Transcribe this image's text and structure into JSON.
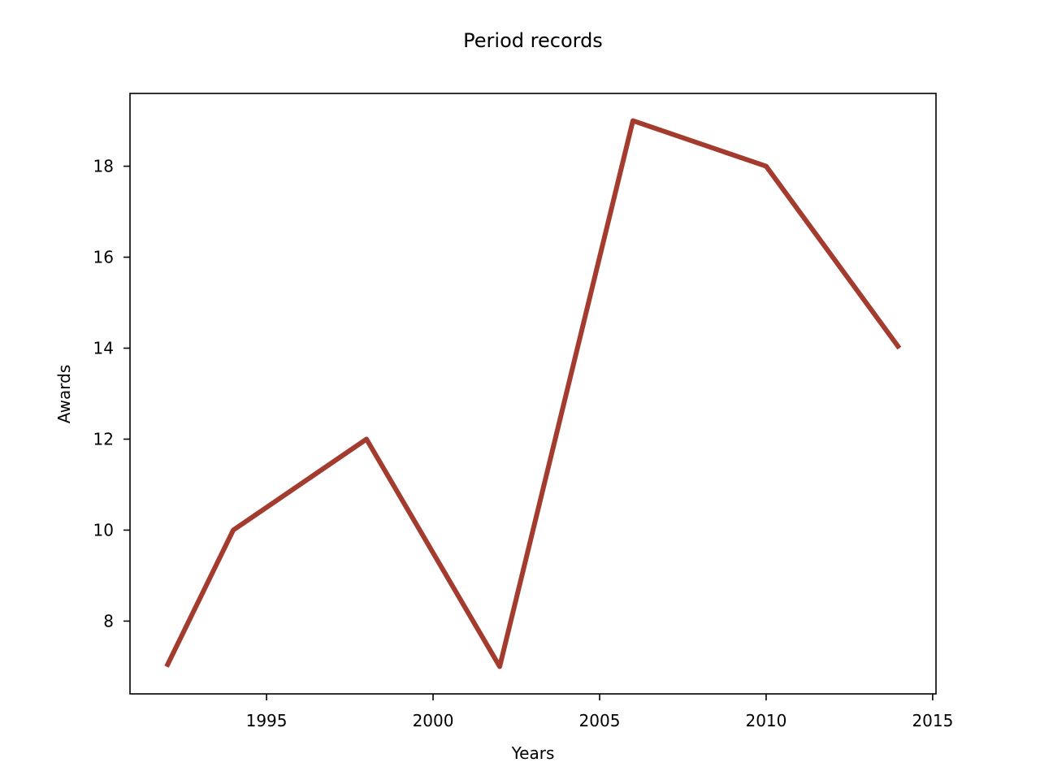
{
  "chart_data": {
    "type": "line",
    "title": "Period records",
    "xlabel": "Years",
    "ylabel": "Awards",
    "x": [
      1992,
      1994,
      1998,
      2002,
      2006,
      2010,
      2014
    ],
    "series": [
      {
        "values": [
          7,
          10,
          12,
          7,
          19,
          18,
          14
        ],
        "color": "#a33b2f"
      }
    ],
    "xlim": [
      1990.9,
      2015.1
    ],
    "ylim": [
      6.4,
      19.6
    ],
    "xticks": [
      1995,
      2000,
      2005,
      2010,
      2015
    ],
    "yticks": [
      8,
      10,
      12,
      14,
      16,
      18
    ],
    "grid": false,
    "legend": "none"
  }
}
